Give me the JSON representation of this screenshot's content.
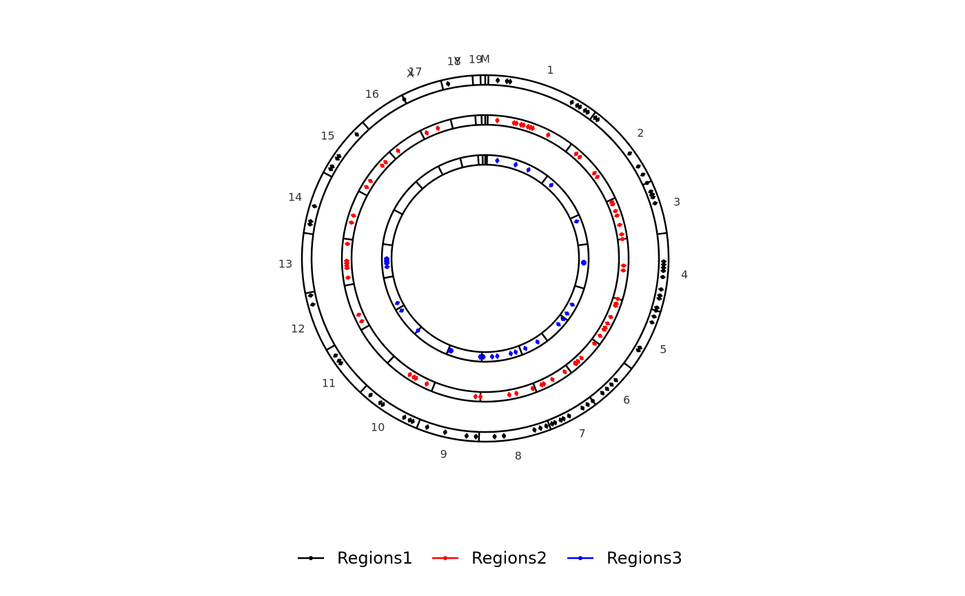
{
  "chart_data": {
    "type": "circular-genome",
    "chromosomes": [
      "M",
      "1",
      "2",
      "3",
      "4",
      "5",
      "6",
      "7",
      "8",
      "9",
      "10",
      "11",
      "12",
      "13",
      "14",
      "15",
      "16",
      "17",
      "18",
      "19",
      "X",
      "Y"
    ],
    "legend": [
      "Regions1",
      "Regions2",
      "Regions3"
    ],
    "series": [
      {
        "name": "Regions1",
        "color": "#000000",
        "ring": "outer",
        "positions": [
          4,
          7,
          8,
          29,
          31,
          32,
          34,
          35,
          38,
          39,
          54,
          59,
          62,
          65,
          68,
          69,
          69.2,
          70,
          72,
          91,
          92,
          93,
          94,
          96,
          100,
          102,
          103,
          106,
          107,
          109,
          111,
          120,
          121,
          133,
          135,
          137,
          139,
          143,
          145,
          147,
          152,
          154,
          155,
          157,
          158,
          160,
          162,
          164,
          174,
          177,
          183,
          186,
          193,
          199,
          204,
          205,
          207,
          215,
          216,
          220,
          234,
          235,
          237,
          255,
          258,
          281,
          282,
          287,
          300,
          301,
          304,
          305,
          314,
          333,
          348
        ]
      },
      {
        "name": "Regions2",
        "color": "#ff0000",
        "ring": "middle",
        "positions": [
          5,
          12,
          13,
          15,
          16,
          18,
          19,
          20,
          27,
          41,
          43,
          52,
          54,
          66,
          67,
          70,
          72,
          76,
          80,
          82,
          93,
          95,
          107,
          109,
          110,
          115,
          118,
          120,
          121,
          124,
          128,
          136,
          138,
          139,
          139.5,
          145,
          151,
          155,
          156,
          160,
          167,
          170,
          182,
          184,
          205,
          210,
          211,
          213,
          243,
          246,
          262,
          266,
          267,
          268,
          269,
          276,
          285,
          288,
          301,
          304,
          312,
          314,
          321,
          335,
          340
        ]
      },
      {
        "name": "Regions3",
        "color": "#0000ff",
        "ring": "inner",
        "positions": [
          7,
          18,
          26,
          42,
          68,
          92,
          93,
          118,
          124,
          128,
          132,
          148,
          156,
          162,
          165,
          173,
          176,
          181,
          183,
          200,
          201,
          223,
          238,
          243,
          265,
          267,
          268,
          269,
          270
        ]
      }
    ]
  }
}
